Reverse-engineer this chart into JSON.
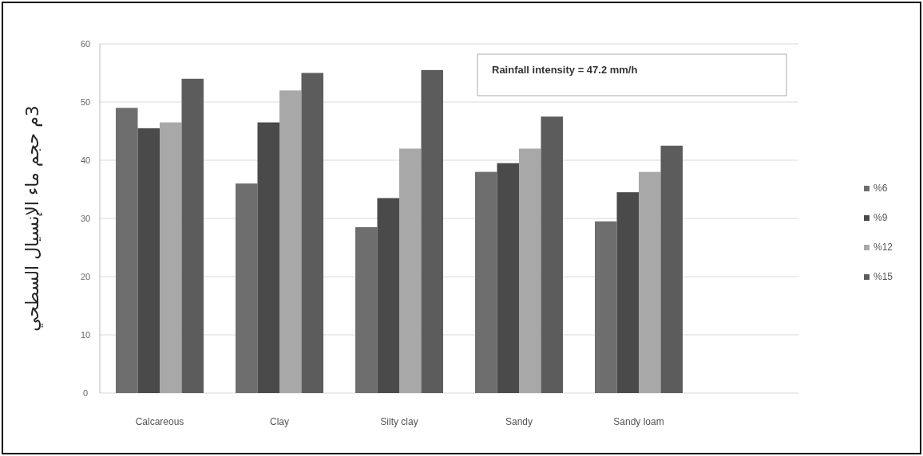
{
  "chart_data": {
    "type": "bar",
    "ylabel": "3م حجم ماء الإنسيال السطحي",
    "categories": [
      "Calcareous",
      "Clay",
      "Silty clay",
      "Sandy",
      "Sandy loam"
    ],
    "series": [
      {
        "name": "%6",
        "color": "#6e6e6e",
        "values": [
          49,
          36,
          28.5,
          38,
          29.5
        ]
      },
      {
        "name": "%9",
        "color": "#4a4a4a",
        "values": [
          45.5,
          46.5,
          33.5,
          39.5,
          34.5
        ]
      },
      {
        "name": "%12",
        "color": "#a8a8a8",
        "values": [
          46.5,
          52,
          42,
          42,
          38
        ]
      },
      {
        "name": "%15",
        "color": "#5c5c5c",
        "values": [
          54,
          55,
          55.5,
          47.5,
          42.5
        ]
      }
    ],
    "ylim": [
      0,
      60
    ],
    "yticks": [
      0,
      10,
      20,
      30,
      40,
      50,
      60
    ],
    "grid": "y",
    "legend": "right",
    "annotations": [
      "Rainfall intensity =  47.2 mm/h"
    ]
  }
}
